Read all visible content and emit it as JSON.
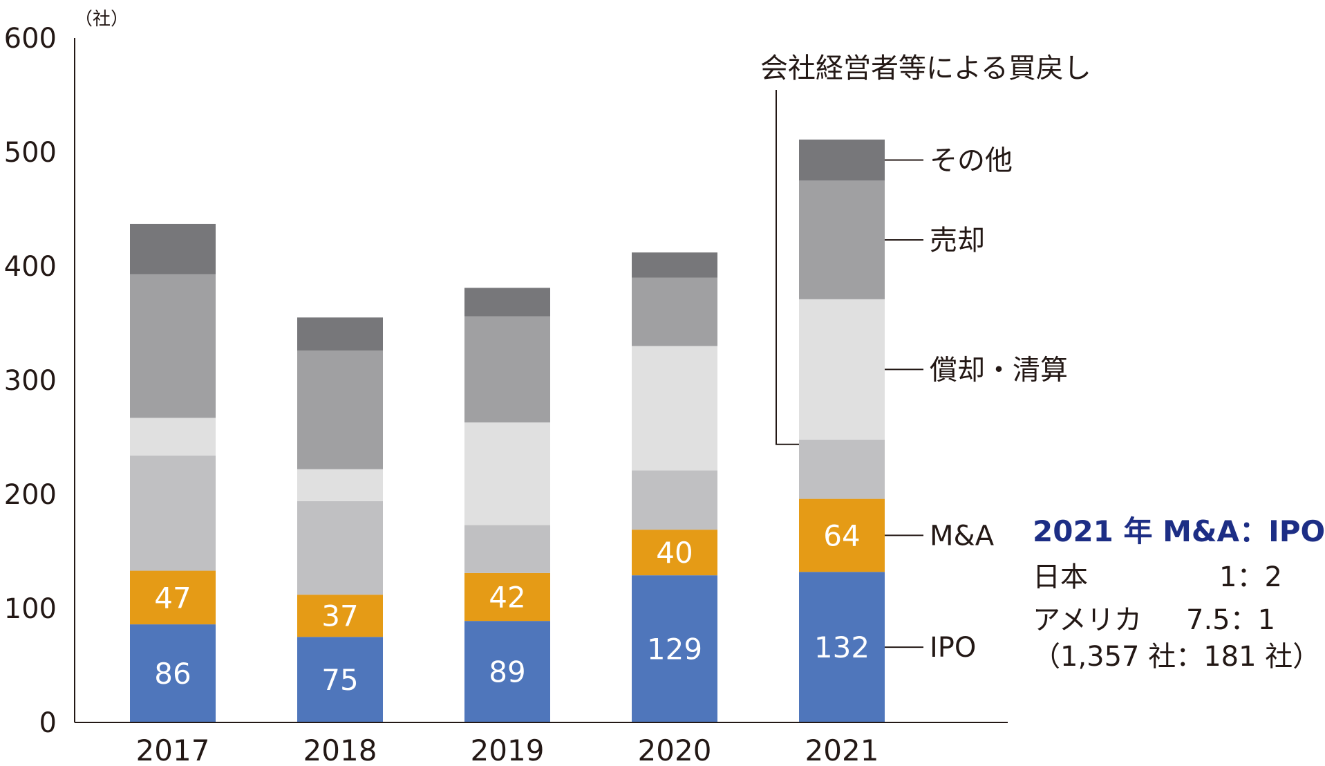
{
  "chart_data": {
    "type": "bar",
    "stacked": true,
    "unit_label": "（社）",
    "categories": [
      "2017",
      "2018",
      "2019",
      "2020",
      "2021"
    ],
    "ylim": [
      0,
      600
    ],
    "yticks": [
      0,
      100,
      200,
      300,
      400,
      500,
      600
    ],
    "series": [
      {
        "name": "IPO",
        "color": "#4f76bb",
        "values": [
          86,
          75,
          89,
          129,
          132
        ],
        "labeled": true
      },
      {
        "name": "M&A",
        "color": "#e59b16",
        "values": [
          47,
          37,
          42,
          40,
          64
        ],
        "labeled": true
      },
      {
        "name": "会社経営者等による買戻し",
        "color": "#c0c0c2",
        "values": [
          101,
          82,
          42,
          52,
          52
        ],
        "labeled": false
      },
      {
        "name": "償却・清算",
        "color": "#e0e0e0",
        "values": [
          33,
          28,
          90,
          109,
          123
        ],
        "labeled": false
      },
      {
        "name": "売却",
        "color": "#a0a0a2",
        "values": [
          126,
          104,
          93,
          60,
          104
        ],
        "labeled": false
      },
      {
        "name": "その他",
        "color": "#77777a",
        "values": [
          44,
          29,
          25,
          22,
          36
        ],
        "labeled": false
      }
    ],
    "grid": false
  },
  "note": {
    "title": "2021 年  M&A：IPO",
    "rows": [
      {
        "label": "日本",
        "value": "1：2"
      },
      {
        "label": "アメリカ",
        "value": "7.5：1"
      }
    ],
    "detail": "（1,357 社：181 社）"
  }
}
